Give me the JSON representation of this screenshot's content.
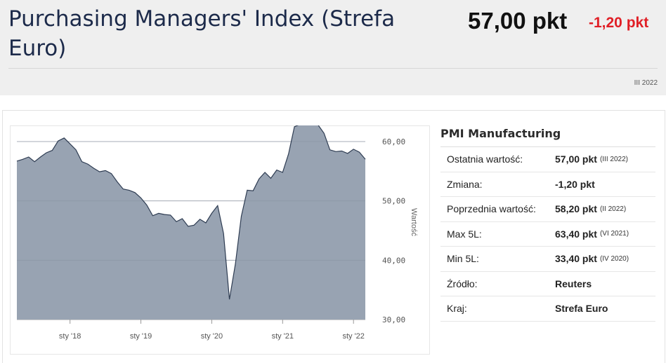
{
  "header": {
    "title": "Purchasing Managers' Index (Strefa Euro)",
    "value": "57,00 pkt",
    "change": "-1,20 pkt",
    "period": "III 2022"
  },
  "colors": {
    "title": "#1c2a4a",
    "negative": "#e01f26",
    "area_fill": "#98a3b2",
    "area_stroke": "#2e3c52"
  },
  "info": {
    "title": "PMI Manufacturing",
    "rows": [
      {
        "label": "Ostatnia wartość:",
        "value": "57,00 pkt",
        "note": "(III 2022)"
      },
      {
        "label": "Zmiana:",
        "value": "-1,20 pkt",
        "note": ""
      },
      {
        "label": "Poprzednia wartość:",
        "value": "58,20 pkt",
        "note": "(II 2022)"
      },
      {
        "label": "Max 5L:",
        "value": "63,40 pkt",
        "note": "(VI 2021)"
      },
      {
        "label": "Min 5L:",
        "value": "33,40 pkt",
        "note": "(IV 2020)"
      },
      {
        "label": "Źródło:",
        "value": "Reuters",
        "note": ""
      },
      {
        "label": "Kraj:",
        "value": "Strefa Euro",
        "note": ""
      }
    ]
  },
  "chart_data": {
    "type": "area",
    "x": [
      "2017-04",
      "2017-05",
      "2017-06",
      "2017-07",
      "2017-08",
      "2017-09",
      "2017-10",
      "2017-11",
      "2017-12",
      "2018-01",
      "2018-02",
      "2018-03",
      "2018-04",
      "2018-05",
      "2018-06",
      "2018-07",
      "2018-08",
      "2018-09",
      "2018-10",
      "2018-11",
      "2018-12",
      "2019-01",
      "2019-02",
      "2019-03",
      "2019-04",
      "2019-05",
      "2019-06",
      "2019-07",
      "2019-08",
      "2019-09",
      "2019-10",
      "2019-11",
      "2019-12",
      "2020-01",
      "2020-02",
      "2020-03",
      "2020-04",
      "2020-05",
      "2020-06",
      "2020-07",
      "2020-08",
      "2020-09",
      "2020-10",
      "2020-11",
      "2020-12",
      "2021-01",
      "2021-02",
      "2021-03",
      "2021-04",
      "2021-05",
      "2021-06",
      "2021-07",
      "2021-08",
      "2021-09",
      "2021-10",
      "2021-11",
      "2021-12",
      "2022-01",
      "2022-02",
      "2022-03"
    ],
    "values": [
      56.7,
      57.0,
      57.4,
      56.6,
      57.4,
      58.1,
      58.5,
      60.1,
      60.6,
      59.6,
      58.6,
      56.6,
      56.2,
      55.5,
      54.9,
      55.1,
      54.6,
      53.2,
      52.0,
      51.8,
      51.4,
      50.5,
      49.3,
      47.5,
      47.9,
      47.7,
      47.6,
      46.5,
      47.0,
      45.7,
      45.9,
      46.9,
      46.3,
      47.9,
      49.2,
      44.5,
      33.4,
      39.4,
      47.4,
      51.8,
      51.7,
      53.7,
      54.8,
      53.8,
      55.2,
      54.8,
      57.9,
      62.5,
      62.9,
      63.1,
      63.4,
      62.8,
      61.4,
      58.6,
      58.3,
      58.4,
      58.0,
      58.7,
      58.2,
      57.0
    ],
    "ylabel": "Wartość",
    "ylim": [
      30,
      62
    ],
    "yticks": [
      30,
      40,
      50,
      60
    ],
    "ytick_labels": [
      "30,00",
      "40,00",
      "50,00",
      "60,00"
    ],
    "xtick_positions": [
      "2018-01",
      "2019-01",
      "2020-01",
      "2021-01",
      "2022-01"
    ],
    "xtick_labels": [
      "sty '18",
      "sty '19",
      "sty '20",
      "sty '21",
      "sty '22"
    ],
    "grid": true,
    "legend": "none"
  }
}
